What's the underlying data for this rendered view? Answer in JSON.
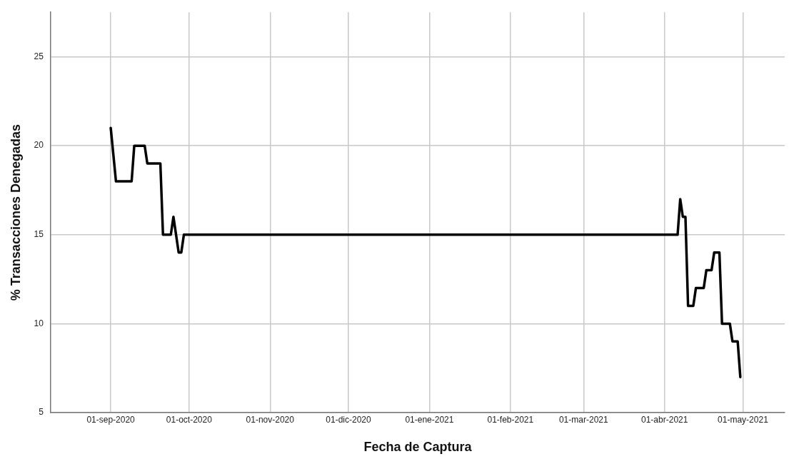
{
  "chart_data": {
    "type": "line",
    "xlabel": "Fecha de Captura",
    "ylabel": "% Transacciones Denegadas",
    "x": [
      "2020-09-01",
      "2020-09-03",
      "2020-09-09",
      "2020-09-10",
      "2020-09-14",
      "2020-09-15",
      "2020-09-20",
      "2020-09-21",
      "2020-09-24",
      "2020-09-25",
      "2020-09-27",
      "2020-09-28",
      "2020-09-29",
      "2021-04-06",
      "2021-04-07",
      "2021-04-08",
      "2021-04-09",
      "2021-04-10",
      "2021-04-12",
      "2021-04-13",
      "2021-04-16",
      "2021-04-17",
      "2021-04-19",
      "2021-04-20",
      "2021-04-22",
      "2021-04-23",
      "2021-04-26",
      "2021-04-27",
      "2021-04-29",
      "2021-04-30"
    ],
    "series": [
      {
        "color": "#000000",
        "values": [
          21,
          18,
          18,
          20,
          20,
          19,
          19,
          15,
          15,
          16,
          14,
          14,
          15,
          15,
          17,
          16,
          16,
          11,
          11,
          12,
          12,
          13,
          13,
          14,
          14,
          10,
          10,
          9,
          9,
          7
        ]
      }
    ],
    "xlim": [
      "2020-08-09",
      "2021-05-17"
    ],
    "xticks": [
      {
        "value": "2020-09-01",
        "label": "01-sep-2020"
      },
      {
        "value": "2020-10-01",
        "label": "01-oct-2020"
      },
      {
        "value": "2020-11-01",
        "label": "01-nov-2020"
      },
      {
        "value": "2020-12-01",
        "label": "01-dic-2020"
      },
      {
        "value": "2021-01-01",
        "label": "01-ene-2021"
      },
      {
        "value": "2021-02-01",
        "label": "01-feb-2021"
      },
      {
        "value": "2021-03-01",
        "label": "01-mar-2021"
      },
      {
        "value": "2021-04-01",
        "label": "01-abr-2021"
      },
      {
        "value": "2021-05-01",
        "label": "01-may-2021"
      }
    ],
    "ylim": [
      5,
      27.5
    ],
    "yticks": [
      5,
      10,
      15,
      20,
      25
    ],
    "grid": true,
    "marker": "none",
    "line_style": "solid",
    "legend": false
  }
}
